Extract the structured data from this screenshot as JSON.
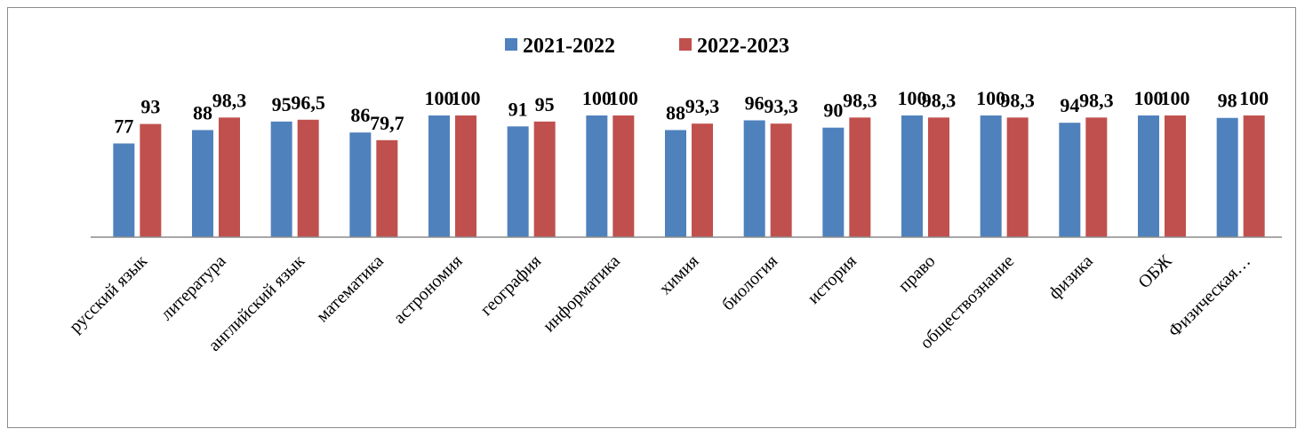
{
  "chart_data": {
    "type": "bar",
    "title": "",
    "xlabel": "",
    "ylabel": "",
    "ylim": [
      0,
      100
    ],
    "grid": false,
    "legend_position": "top",
    "categories": [
      "русский язык",
      "литература",
      "английский язык",
      "математика",
      "астрономия",
      "география",
      "информатика",
      "химия",
      "биология",
      "история",
      "право",
      "обществознание",
      "физика",
      "ОБЖ",
      "Физическая…"
    ],
    "series": [
      {
        "name": "2021-2022",
        "color": "#4f81bd",
        "values": [
          77,
          88,
          95,
          86,
          100,
          91,
          100,
          88,
          96,
          90,
          100,
          100,
          94,
          100,
          98
        ],
        "labels": [
          "77",
          "88",
          "95",
          "86",
          "100",
          "91",
          "100",
          "88",
          "96",
          "90",
          "100",
          "100",
          "94",
          "100",
          "98"
        ]
      },
      {
        "name": "2022-2023",
        "color": "#c0504d",
        "values": [
          93,
          98.3,
          96.5,
          79.7,
          100,
          95,
          100,
          93.3,
          93.3,
          98.3,
          98.3,
          98.3,
          98.3,
          100,
          100
        ],
        "labels": [
          "93",
          "98,3",
          "96,5",
          "79,7",
          "100",
          "95",
          "100",
          "93,3",
          "93,3",
          "98,3",
          "98,3",
          "98,3",
          "98,3",
          "100",
          "100"
        ]
      }
    ]
  }
}
